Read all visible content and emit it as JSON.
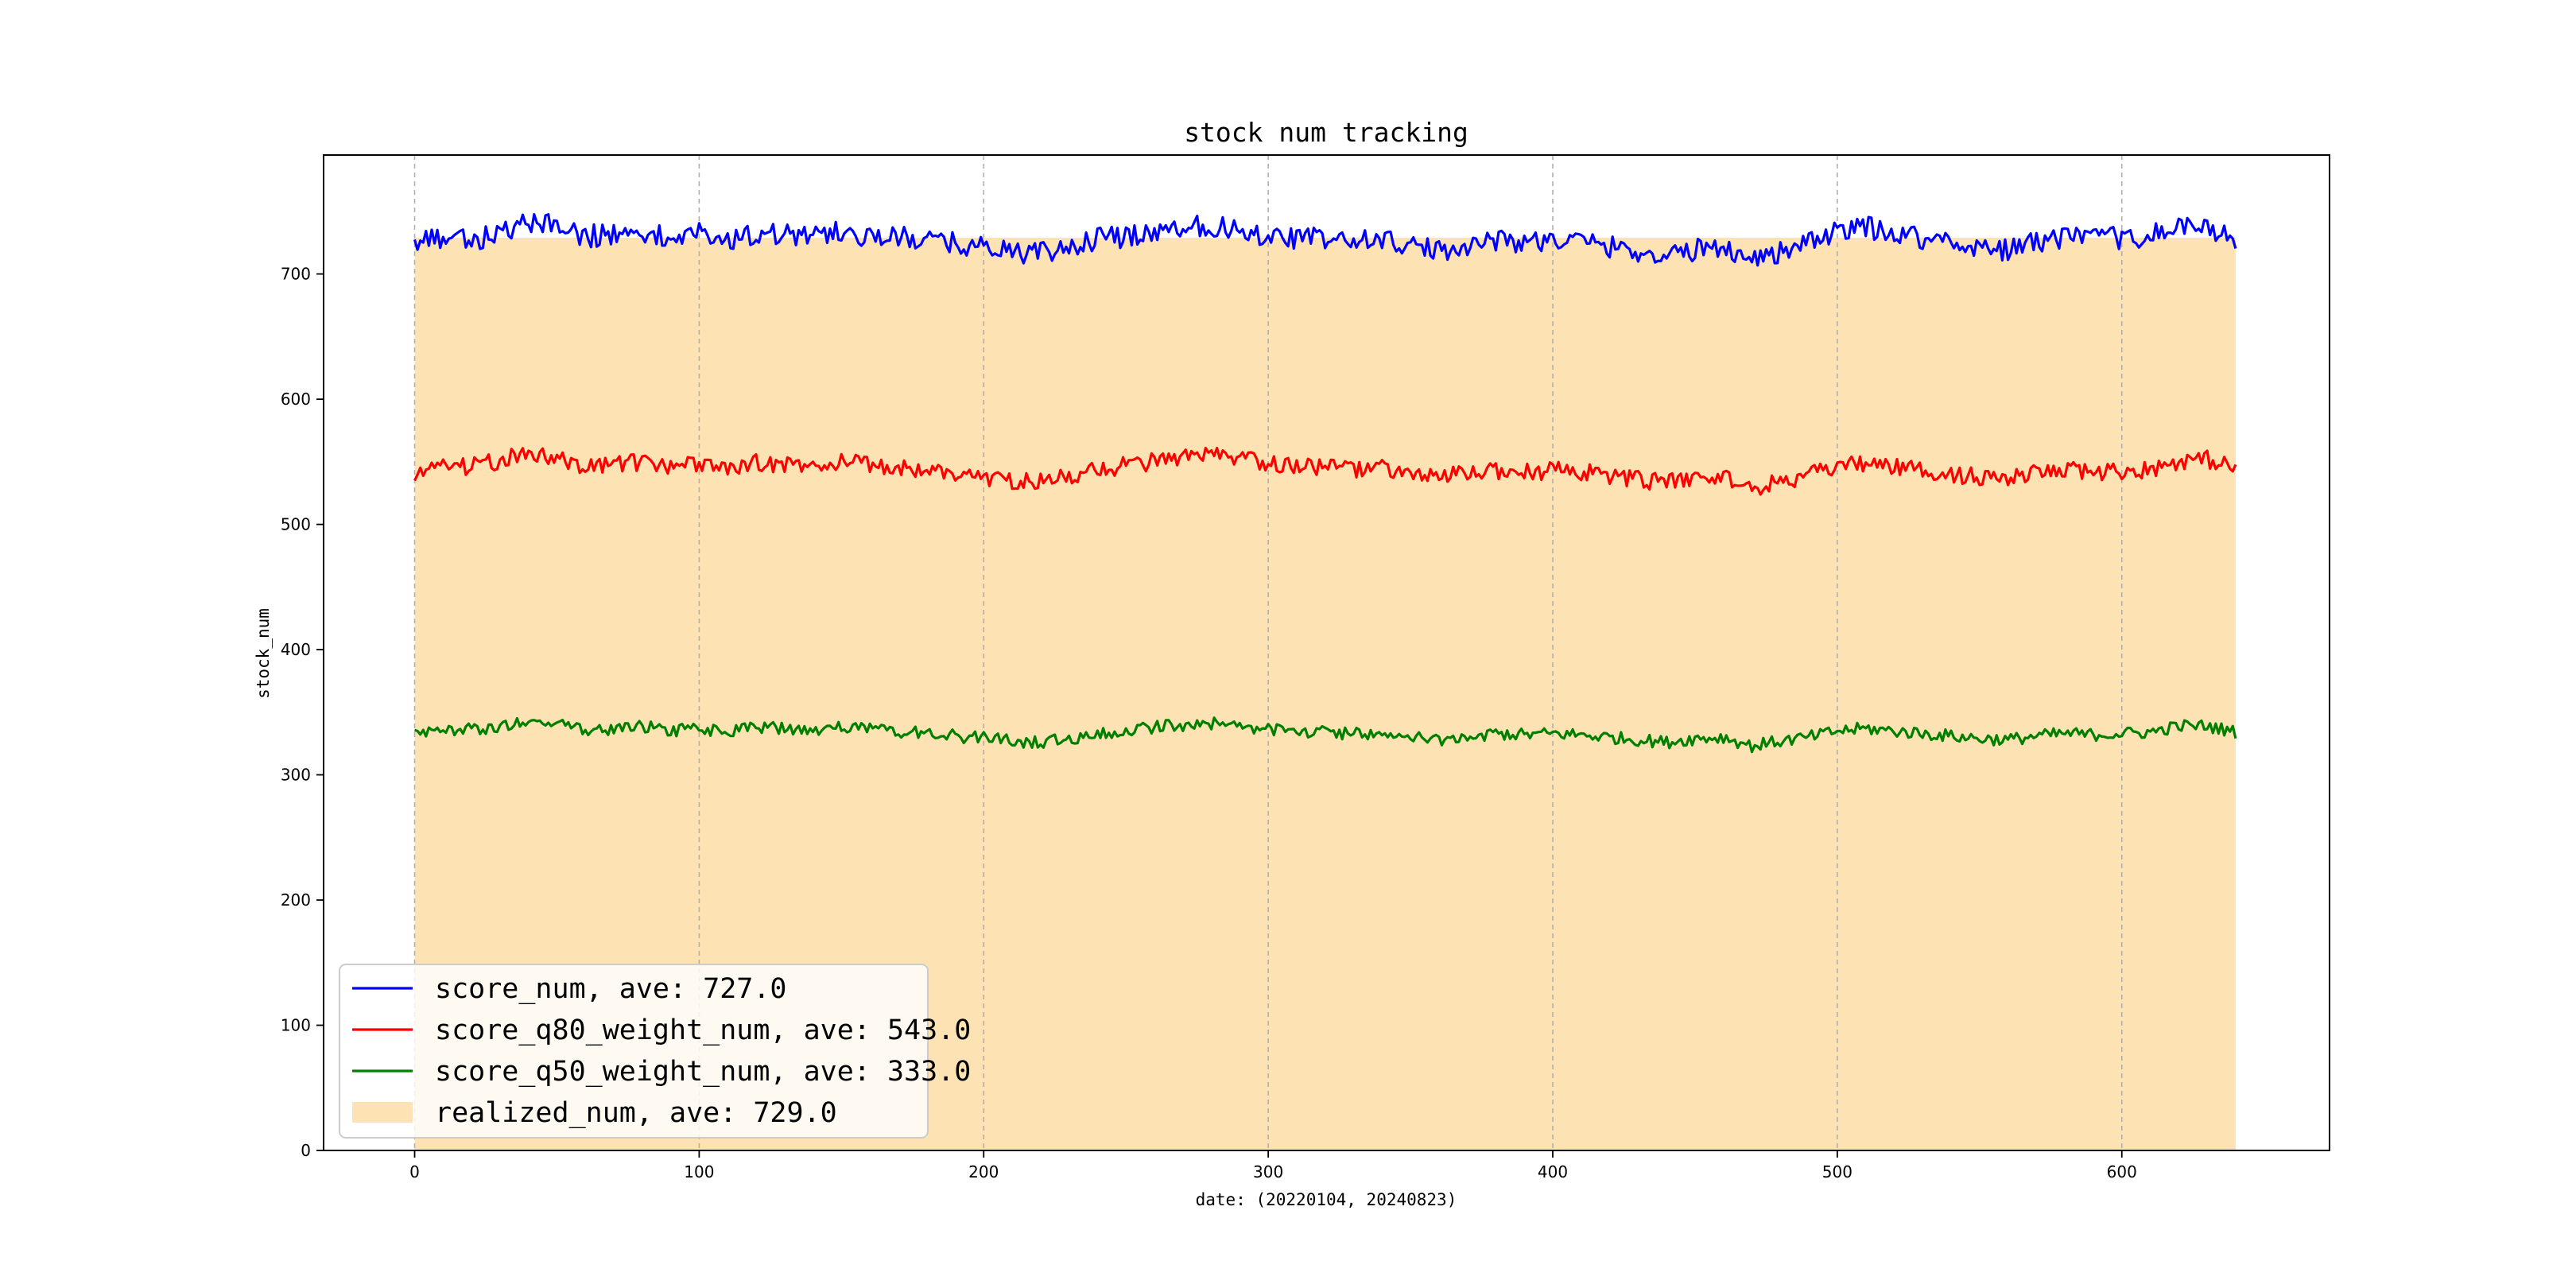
{
  "chart_data": {
    "type": "line",
    "title": "stock num tracking",
    "xlabel": "date: (20220104, 20240823)",
    "ylabel": "stock_num",
    "xlim": [
      -32,
      673
    ],
    "ylim": [
      0,
      795
    ],
    "xticks": [
      0,
      100,
      200,
      300,
      400,
      500,
      600
    ],
    "yticks": [
      0,
      100,
      200,
      300,
      400,
      500,
      600,
      700
    ],
    "grid": "x-dashed",
    "legend_position": "lower-left",
    "x_range": [
      0,
      640
    ],
    "series": [
      {
        "name": "score_num, ave: 727.0",
        "color": "#0000ff",
        "x": [
          0,
          10,
          20,
          30,
          40,
          50,
          60,
          70,
          80,
          90,
          100,
          110,
          120,
          130,
          140,
          150,
          160,
          170,
          180,
          190,
          200,
          210,
          220,
          230,
          240,
          250,
          260,
          270,
          280,
          290,
          300,
          310,
          320,
          330,
          340,
          350,
          360,
          370,
          380,
          390,
          400,
          410,
          420,
          430,
          440,
          450,
          460,
          470,
          480,
          490,
          500,
          510,
          520,
          530,
          540,
          550,
          560,
          570,
          580,
          590,
          600,
          610,
          620,
          630,
          640
        ],
        "values": [
          724,
          730,
          726,
          733,
          742,
          738,
          730,
          732,
          735,
          728,
          732,
          726,
          733,
          731,
          729,
          734,
          730,
          729,
          727,
          724,
          722,
          718,
          716,
          721,
          728,
          730,
          734,
          738,
          739,
          735,
          731,
          729,
          728,
          726,
          728,
          722,
          718,
          724,
          727,
          726,
          727,
          726,
          722,
          718,
          714,
          719,
          722,
          712,
          718,
          724,
          734,
          737,
          733,
          729,
          725,
          722,
          719,
          726,
          729,
          728,
          729,
          730,
          738,
          736,
          728
        ]
      },
      {
        "name": "score_q80_weight_num, ave: 543.0",
        "color": "#ff0000",
        "x": [
          0,
          10,
          20,
          30,
          40,
          50,
          60,
          70,
          80,
          90,
          100,
          110,
          120,
          130,
          140,
          150,
          160,
          170,
          180,
          190,
          200,
          210,
          220,
          230,
          240,
          250,
          260,
          270,
          280,
          290,
          300,
          310,
          320,
          330,
          340,
          350,
          360,
          370,
          380,
          390,
          400,
          410,
          420,
          430,
          440,
          450,
          460,
          470,
          480,
          490,
          500,
          510,
          520,
          530,
          540,
          550,
          560,
          570,
          580,
          590,
          600,
          610,
          620,
          630,
          640
        ],
        "values": [
          540,
          548,
          546,
          551,
          557,
          553,
          546,
          547,
          550,
          545,
          548,
          543,
          549,
          548,
          546,
          550,
          547,
          546,
          543,
          540,
          538,
          535,
          534,
          538,
          544,
          547,
          550,
          553,
          555,
          552,
          549,
          547,
          546,
          544,
          545,
          540,
          537,
          541,
          543,
          542,
          543,
          542,
          539,
          536,
          533,
          537,
          539,
          528,
          534,
          539,
          546,
          549,
          546,
          543,
          540,
          538,
          536,
          541,
          543,
          542,
          543,
          544,
          551,
          552,
          545
        ]
      },
      {
        "name": "score_q50_weight_num, ave: 333.0",
        "color": "#008000",
        "x": [
          0,
          10,
          20,
          30,
          40,
          50,
          60,
          70,
          80,
          90,
          100,
          110,
          120,
          130,
          140,
          150,
          160,
          170,
          180,
          190,
          200,
          210,
          220,
          230,
          240,
          250,
          260,
          270,
          280,
          290,
          300,
          310,
          320,
          330,
          340,
          350,
          360,
          370,
          380,
          390,
          400,
          410,
          420,
          430,
          440,
          450,
          460,
          470,
          480,
          490,
          500,
          510,
          520,
          530,
          540,
          550,
          560,
          570,
          580,
          590,
          600,
          610,
          620,
          630,
          640
        ],
        "values": [
          333,
          337,
          336,
          339,
          343,
          341,
          336,
          337,
          339,
          335,
          337,
          334,
          338,
          337,
          335,
          338,
          336,
          335,
          333,
          331,
          329,
          327,
          326,
          329,
          333,
          335,
          338,
          340,
          341,
          339,
          336,
          335,
          334,
          333,
          333,
          330,
          328,
          331,
          333,
          332,
          333,
          332,
          330,
          328,
          326,
          329,
          330,
          323,
          327,
          330,
          335,
          337,
          335,
          333,
          331,
          329,
          328,
          331,
          333,
          332,
          333,
          334,
          339,
          339,
          334
        ]
      },
      {
        "name": "realized_num, ave: 729.0",
        "color": "#fde2b3",
        "type": "area",
        "x": [
          0,
          640
        ],
        "values": [
          729,
          729
        ]
      }
    ]
  }
}
